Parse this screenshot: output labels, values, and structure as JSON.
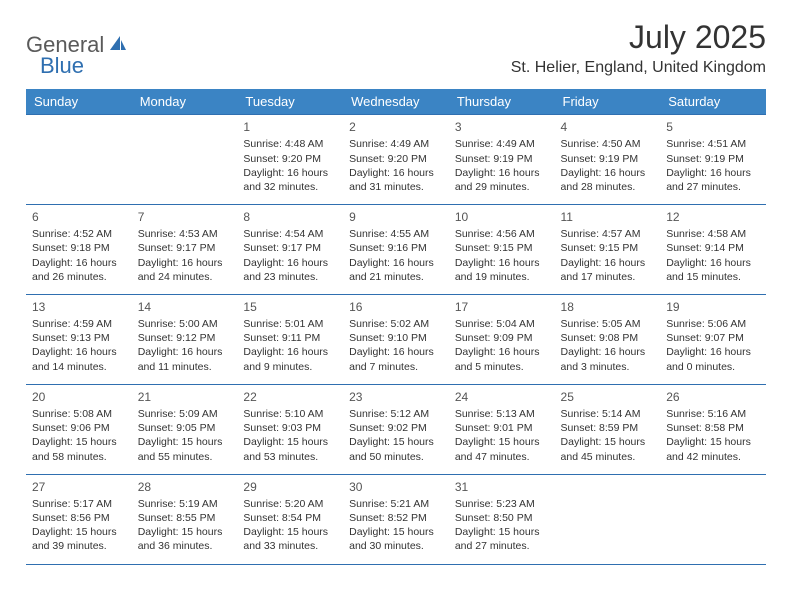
{
  "branding": {
    "logo_part1": "General",
    "logo_part2": "Blue",
    "logo_color1": "#5a5a5a",
    "logo_color2": "#2f6fb0"
  },
  "header": {
    "month_title": "July 2025",
    "location": "St. Helier, England, United Kingdom"
  },
  "theme": {
    "header_bg": "#3b84c4",
    "header_fg": "#ffffff",
    "row_border": "#2f6fb0",
    "text_color": "#333333",
    "daynum_color": "#555555",
    "page_bg": "#ffffff"
  },
  "weekdays": [
    "Sunday",
    "Monday",
    "Tuesday",
    "Wednesday",
    "Thursday",
    "Friday",
    "Saturday"
  ],
  "weeks": [
    [
      null,
      null,
      {
        "day": "1",
        "sunrise": "Sunrise: 4:48 AM",
        "sunset": "Sunset: 9:20 PM",
        "daylight": "Daylight: 16 hours and 32 minutes."
      },
      {
        "day": "2",
        "sunrise": "Sunrise: 4:49 AM",
        "sunset": "Sunset: 9:20 PM",
        "daylight": "Daylight: 16 hours and 31 minutes."
      },
      {
        "day": "3",
        "sunrise": "Sunrise: 4:49 AM",
        "sunset": "Sunset: 9:19 PM",
        "daylight": "Daylight: 16 hours and 29 minutes."
      },
      {
        "day": "4",
        "sunrise": "Sunrise: 4:50 AM",
        "sunset": "Sunset: 9:19 PM",
        "daylight": "Daylight: 16 hours and 28 minutes."
      },
      {
        "day": "5",
        "sunrise": "Sunrise: 4:51 AM",
        "sunset": "Sunset: 9:19 PM",
        "daylight": "Daylight: 16 hours and 27 minutes."
      }
    ],
    [
      {
        "day": "6",
        "sunrise": "Sunrise: 4:52 AM",
        "sunset": "Sunset: 9:18 PM",
        "daylight": "Daylight: 16 hours and 26 minutes."
      },
      {
        "day": "7",
        "sunrise": "Sunrise: 4:53 AM",
        "sunset": "Sunset: 9:17 PM",
        "daylight": "Daylight: 16 hours and 24 minutes."
      },
      {
        "day": "8",
        "sunrise": "Sunrise: 4:54 AM",
        "sunset": "Sunset: 9:17 PM",
        "daylight": "Daylight: 16 hours and 23 minutes."
      },
      {
        "day": "9",
        "sunrise": "Sunrise: 4:55 AM",
        "sunset": "Sunset: 9:16 PM",
        "daylight": "Daylight: 16 hours and 21 minutes."
      },
      {
        "day": "10",
        "sunrise": "Sunrise: 4:56 AM",
        "sunset": "Sunset: 9:15 PM",
        "daylight": "Daylight: 16 hours and 19 minutes."
      },
      {
        "day": "11",
        "sunrise": "Sunrise: 4:57 AM",
        "sunset": "Sunset: 9:15 PM",
        "daylight": "Daylight: 16 hours and 17 minutes."
      },
      {
        "day": "12",
        "sunrise": "Sunrise: 4:58 AM",
        "sunset": "Sunset: 9:14 PM",
        "daylight": "Daylight: 16 hours and 15 minutes."
      }
    ],
    [
      {
        "day": "13",
        "sunrise": "Sunrise: 4:59 AM",
        "sunset": "Sunset: 9:13 PM",
        "daylight": "Daylight: 16 hours and 14 minutes."
      },
      {
        "day": "14",
        "sunrise": "Sunrise: 5:00 AM",
        "sunset": "Sunset: 9:12 PM",
        "daylight": "Daylight: 16 hours and 11 minutes."
      },
      {
        "day": "15",
        "sunrise": "Sunrise: 5:01 AM",
        "sunset": "Sunset: 9:11 PM",
        "daylight": "Daylight: 16 hours and 9 minutes."
      },
      {
        "day": "16",
        "sunrise": "Sunrise: 5:02 AM",
        "sunset": "Sunset: 9:10 PM",
        "daylight": "Daylight: 16 hours and 7 minutes."
      },
      {
        "day": "17",
        "sunrise": "Sunrise: 5:04 AM",
        "sunset": "Sunset: 9:09 PM",
        "daylight": "Daylight: 16 hours and 5 minutes."
      },
      {
        "day": "18",
        "sunrise": "Sunrise: 5:05 AM",
        "sunset": "Sunset: 9:08 PM",
        "daylight": "Daylight: 16 hours and 3 minutes."
      },
      {
        "day": "19",
        "sunrise": "Sunrise: 5:06 AM",
        "sunset": "Sunset: 9:07 PM",
        "daylight": "Daylight: 16 hours and 0 minutes."
      }
    ],
    [
      {
        "day": "20",
        "sunrise": "Sunrise: 5:08 AM",
        "sunset": "Sunset: 9:06 PM",
        "daylight": "Daylight: 15 hours and 58 minutes."
      },
      {
        "day": "21",
        "sunrise": "Sunrise: 5:09 AM",
        "sunset": "Sunset: 9:05 PM",
        "daylight": "Daylight: 15 hours and 55 minutes."
      },
      {
        "day": "22",
        "sunrise": "Sunrise: 5:10 AM",
        "sunset": "Sunset: 9:03 PM",
        "daylight": "Daylight: 15 hours and 53 minutes."
      },
      {
        "day": "23",
        "sunrise": "Sunrise: 5:12 AM",
        "sunset": "Sunset: 9:02 PM",
        "daylight": "Daylight: 15 hours and 50 minutes."
      },
      {
        "day": "24",
        "sunrise": "Sunrise: 5:13 AM",
        "sunset": "Sunset: 9:01 PM",
        "daylight": "Daylight: 15 hours and 47 minutes."
      },
      {
        "day": "25",
        "sunrise": "Sunrise: 5:14 AM",
        "sunset": "Sunset: 8:59 PM",
        "daylight": "Daylight: 15 hours and 45 minutes."
      },
      {
        "day": "26",
        "sunrise": "Sunrise: 5:16 AM",
        "sunset": "Sunset: 8:58 PM",
        "daylight": "Daylight: 15 hours and 42 minutes."
      }
    ],
    [
      {
        "day": "27",
        "sunrise": "Sunrise: 5:17 AM",
        "sunset": "Sunset: 8:56 PM",
        "daylight": "Daylight: 15 hours and 39 minutes."
      },
      {
        "day": "28",
        "sunrise": "Sunrise: 5:19 AM",
        "sunset": "Sunset: 8:55 PM",
        "daylight": "Daylight: 15 hours and 36 minutes."
      },
      {
        "day": "29",
        "sunrise": "Sunrise: 5:20 AM",
        "sunset": "Sunset: 8:54 PM",
        "daylight": "Daylight: 15 hours and 33 minutes."
      },
      {
        "day": "30",
        "sunrise": "Sunrise: 5:21 AM",
        "sunset": "Sunset: 8:52 PM",
        "daylight": "Daylight: 15 hours and 30 minutes."
      },
      {
        "day": "31",
        "sunrise": "Sunrise: 5:23 AM",
        "sunset": "Sunset: 8:50 PM",
        "daylight": "Daylight: 15 hours and 27 minutes."
      },
      null,
      null
    ]
  ]
}
